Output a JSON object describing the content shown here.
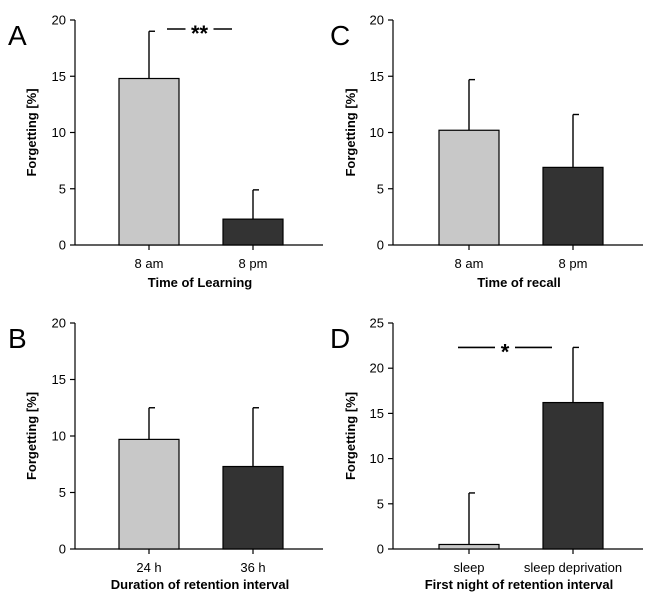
{
  "chart_data": [
    {
      "type": "bar",
      "panel_label": "A",
      "xlabel": "Time of Learning",
      "ylabel": "Forgetting [%]",
      "ylim": [
        0,
        20
      ],
      "yticks": [
        0,
        5,
        10,
        15,
        20
      ],
      "categories": [
        "8 am",
        "8 pm"
      ],
      "values": [
        14.8,
        2.3
      ],
      "errors": [
        4.2,
        2.6
      ],
      "colors": [
        "#c8c8c8",
        "#333333"
      ],
      "significance": {
        "label": "**",
        "y": 19.2,
        "between": [
          0,
          1
        ]
      }
    },
    {
      "type": "bar",
      "panel_label": "C",
      "xlabel": "Time of recall",
      "ylabel": "Forgetting [%]",
      "ylim": [
        0,
        20
      ],
      "yticks": [
        0,
        5,
        10,
        15,
        20
      ],
      "categories": [
        "8 am",
        "8 pm"
      ],
      "values": [
        10.2,
        6.9
      ],
      "errors": [
        4.5,
        4.7
      ],
      "colors": [
        "#c8c8c8",
        "#333333"
      ]
    },
    {
      "type": "bar",
      "panel_label": "B",
      "xlabel": "Duration of retention interval",
      "ylabel": "Forgetting [%]",
      "ylim": [
        0,
        20
      ],
      "yticks": [
        0,
        5,
        10,
        15,
        20
      ],
      "categories": [
        "24 h",
        "36 h"
      ],
      "values": [
        9.7,
        7.3
      ],
      "errors": [
        2.8,
        5.2
      ],
      "colors": [
        "#c8c8c8",
        "#333333"
      ]
    },
    {
      "type": "bar",
      "panel_label": "D",
      "xlabel": "First night of retention interval",
      "ylabel": "Forgetting [%]",
      "ylim": [
        0,
        25
      ],
      "yticks": [
        0,
        5,
        10,
        15,
        20,
        25
      ],
      "categories": [
        "sleep",
        "sleep deprivation"
      ],
      "values": [
        0.5,
        16.2
      ],
      "errors": [
        5.7,
        6.1
      ],
      "colors": [
        "#c8c8c8",
        "#333333"
      ],
      "significance": {
        "label": "*",
        "y": 22.3,
        "between": [
          0,
          1
        ]
      }
    }
  ]
}
